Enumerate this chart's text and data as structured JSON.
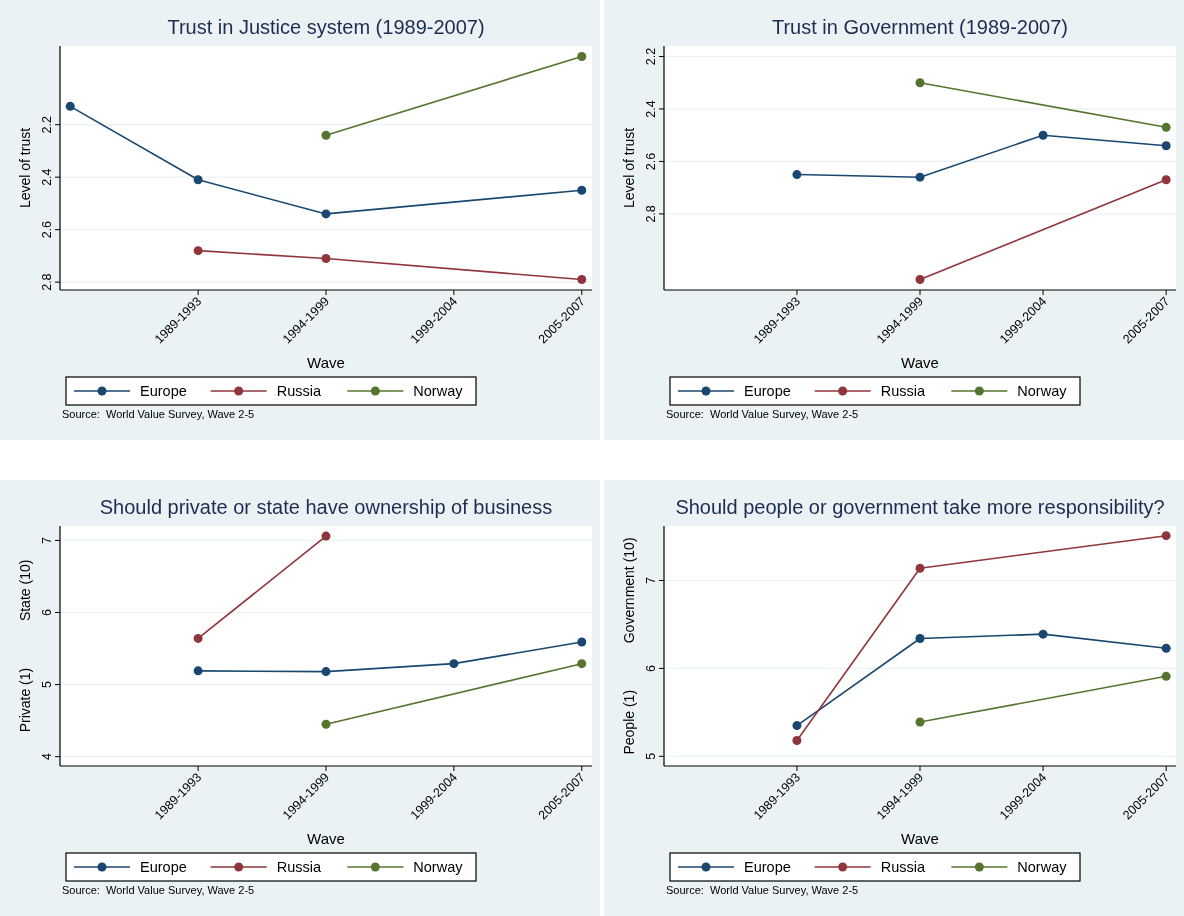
{
  "chart_data": [
    {
      "type": "line",
      "title": "Trust in Justice system (1989-2007)",
      "xlabel": "Wave",
      "ylabel": "Level of trust",
      "categories": [
        null,
        "1989-1993",
        "1994-1999",
        "1999-2004",
        "2005-2007"
      ],
      "ylim": [
        2.83,
        1.9
      ],
      "yticks": [
        2.2,
        2.4,
        2.6,
        2.8
      ],
      "grid": "y",
      "legend": "bottom",
      "marker": "circle",
      "annotations": [
        "Source:  World Value Survey, Wave 2-5"
      ],
      "series": [
        {
          "name": "Europe",
          "color": "#1a476f",
          "values": [
            2.13,
            2.41,
            2.54,
            null,
            2.45
          ]
        },
        {
          "name": "Russia",
          "color": "#90353b",
          "values": [
            null,
            2.68,
            2.71,
            null,
            2.79
          ]
        },
        {
          "name": "Norway",
          "color": "#55752f",
          "values": [
            null,
            null,
            2.24,
            null,
            1.94
          ]
        }
      ]
    },
    {
      "type": "line",
      "title": "Trust in Government (1989-2007)",
      "xlabel": "Wave",
      "ylabel": "Level of trust",
      "categories": [
        null,
        "1989-1993",
        "1994-1999",
        "1999-2004",
        "2005-2007"
      ],
      "ylim": [
        3.09,
        2.16
      ],
      "yticks": [
        2.2,
        2.4,
        2.6,
        2.8
      ],
      "grid": "y",
      "legend": "bottom",
      "marker": "circle",
      "annotations": [
        "Source:  World Value Survey, Wave 2-5"
      ],
      "series": [
        {
          "name": "Europe",
          "color": "#1a476f",
          "values": [
            null,
            2.65,
            2.66,
            2.5,
            2.54
          ]
        },
        {
          "name": "Russia",
          "color": "#90353b",
          "values": [
            null,
            null,
            3.05,
            null,
            2.67
          ]
        },
        {
          "name": "Norway",
          "color": "#55752f",
          "values": [
            null,
            null,
            2.3,
            null,
            2.47
          ]
        }
      ]
    },
    {
      "type": "line",
      "title": "Should private or state have ownership of business",
      "xlabel": "Wave",
      "ylabel": "Private (1)            State (10)",
      "categories": [
        null,
        "1989-1993",
        "1994-1999",
        "1999-2004",
        "2005-2007"
      ],
      "ylim": [
        3.87,
        7.2
      ],
      "yticks": [
        4,
        5,
        6,
        7
      ],
      "grid": "y",
      "legend": "bottom",
      "marker": "circle",
      "annotations": [
        "Source:  World Value Survey, Wave 2-5"
      ],
      "series": [
        {
          "name": "Europe",
          "color": "#1a476f",
          "values": [
            null,
            5.19,
            5.18,
            5.29,
            5.59
          ]
        },
        {
          "name": "Russia",
          "color": "#90353b",
          "values": [
            null,
            5.64,
            7.06,
            null,
            null
          ]
        },
        {
          "name": "Norway",
          "color": "#55752f",
          "values": [
            null,
            null,
            4.45,
            null,
            5.29
          ]
        }
      ]
    },
    {
      "type": "line",
      "title": "Should people or government take more responsibility?",
      "xlabel": "Wave",
      "ylabel": "People (1)            Government (10)",
      "categories": [
        null,
        "1989-1993",
        "1994-1999",
        "1999-2004",
        "2005-2007"
      ],
      "ylim": [
        4.89,
        7.62
      ],
      "yticks": [
        5,
        6,
        7
      ],
      "grid": "y",
      "legend": "bottom",
      "marker": "circle",
      "annotations": [
        "Source:  World Value Survey, Wave 2-5"
      ],
      "series": [
        {
          "name": "Europe",
          "color": "#1a476f",
          "values": [
            null,
            5.35,
            6.34,
            6.39,
            6.23
          ]
        },
        {
          "name": "Russia",
          "color": "#90353b",
          "values": [
            null,
            5.18,
            7.14,
            null,
            7.51
          ]
        },
        {
          "name": "Norway",
          "color": "#55752f",
          "values": [
            null,
            null,
            5.39,
            null,
            5.91
          ]
        }
      ]
    }
  ]
}
